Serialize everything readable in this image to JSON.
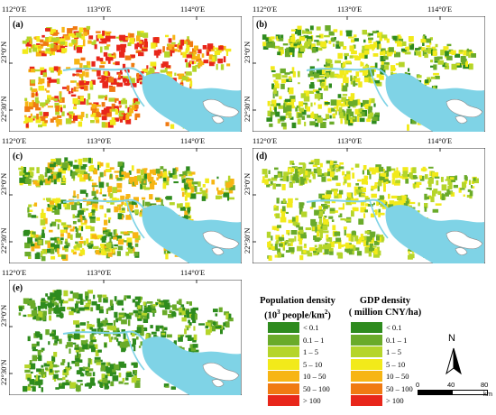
{
  "lon_labels": [
    "112°0′E",
    "113°0′E",
    "114°0′E"
  ],
  "lat_labels": [
    "23°0′N",
    "22°30′N"
  ],
  "panels": [
    {
      "label": "(a)",
      "variant": "a"
    },
    {
      "label": "(b)",
      "variant": "b"
    },
    {
      "label": "(c)",
      "variant": "c"
    },
    {
      "label": "(d)",
      "variant": "d"
    },
    {
      "label": "(e)",
      "variant": "e"
    }
  ],
  "legend_population": {
    "title_line1": "Population density",
    "title_line2_pre": "(10",
    "title_line2_sup": "3",
    "title_line2_mid": " people/km",
    "title_line2_sup2": "2",
    "title_line2_post": ")",
    "classes": [
      "< 0.1",
      "0.1 – 1",
      "1 – 5",
      "5 – 10",
      "10 – 50",
      "50 – 100",
      "> 100"
    ]
  },
  "legend_gdp": {
    "title_line1": "GDP density",
    "title_line2": "( million CNY/ha)",
    "classes": [
      "< 0.1",
      "0.1 – 1",
      "1 – 5",
      "5 – 10",
      "10 – 50",
      "50 – 100",
      "> 100"
    ]
  },
  "class_colors": [
    "#2e8b1e",
    "#6aab2a",
    "#b5d52a",
    "#f2ea1a",
    "#f7b514",
    "#f07a12",
    "#e8261a"
  ],
  "water_color": "#7fd3e6",
  "north_label": "N",
  "scale_labels": [
    "0",
    "40",
    "80"
  ],
  "scale_unit": "km"
}
